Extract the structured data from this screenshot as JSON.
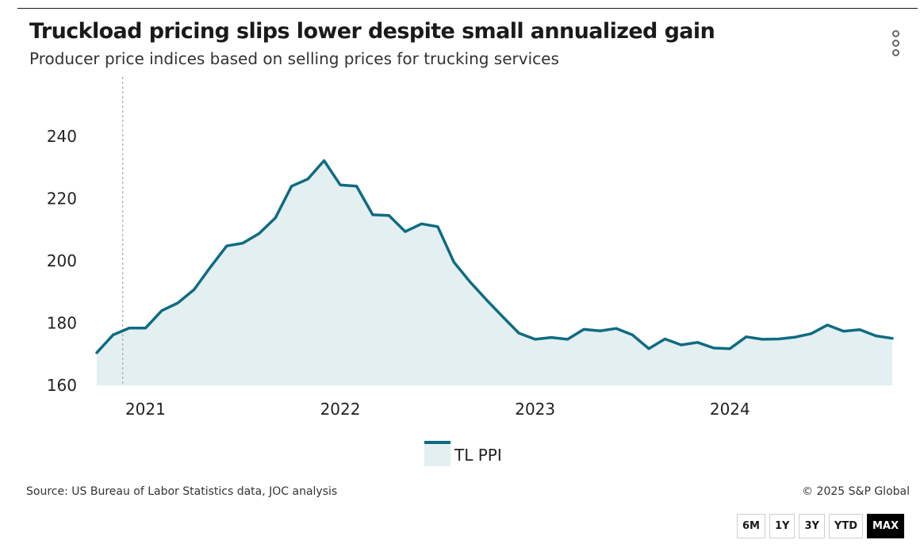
{
  "header": {
    "title": "Truckload pricing slips lower despite small annualized gain",
    "subtitle": "Producer price indices based on selling prices for trucking services",
    "menu_icon": "more-vertical-icon"
  },
  "chart_data": {
    "type": "area",
    "title": "Truckload pricing slips lower despite small annualized gain",
    "subtitle": "Producer price indices based on selling prices for trucking services",
    "xlabel": "",
    "ylabel": "",
    "ylim": [
      160,
      240
    ],
    "y_ticks": [
      160,
      180,
      200,
      220,
      240
    ],
    "x_ticks": [
      {
        "label": "2021",
        "position": 3
      },
      {
        "label": "2022",
        "position": 15
      },
      {
        "label": "2023",
        "position": 27
      },
      {
        "label": "2024",
        "position": 39
      }
    ],
    "crosshair_index": 1.6,
    "grid": false,
    "legend_position": "bottom-center",
    "series": [
      {
        "name": "TL PPI",
        "color": "#0f6b82",
        "fill": "#e3eff1",
        "values": [
          170.5,
          176.2,
          178.4,
          178.4,
          184.0,
          186.5,
          190.8,
          198.0,
          204.8,
          205.7,
          208.8,
          213.8,
          224.0,
          226.3,
          232.2,
          224.4,
          224.0,
          214.8,
          214.6,
          209.4,
          211.9,
          211.0,
          199.6,
          193.2,
          187.5,
          182.1,
          176.8,
          174.8,
          175.4,
          174.8,
          178.0,
          177.5,
          178.3,
          176.2,
          171.8,
          174.9,
          173.0,
          173.8,
          172.0,
          171.8,
          175.6,
          174.8,
          174.9,
          175.5,
          176.6,
          179.4,
          177.4,
          177.9,
          175.9,
          175.1
        ]
      }
    ]
  },
  "footer": {
    "source": "Source: US Bureau of Labor Statistics data, JOC analysis",
    "copyright": "© 2025 S&P Global"
  },
  "range_buttons": {
    "six_months": "6M",
    "one_year": "1Y",
    "three_years": "3Y",
    "ytd": "YTD",
    "max": "MAX",
    "active": "MAX"
  }
}
